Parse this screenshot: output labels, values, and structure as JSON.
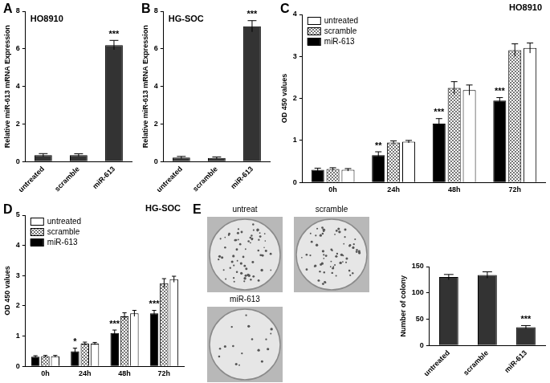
{
  "chart_data": [
    {
      "panel": "A",
      "type": "bar",
      "title": "HO8910",
      "y_label": "Relative miR-613 mRNA Expression",
      "categories": [
        "untreated",
        "scramble",
        "miR-613"
      ],
      "values": [
        0.35,
        0.35,
        6.2
      ],
      "errors": [
        0.08,
        0.07,
        0.25
      ],
      "color": "#333333",
      "ylim": [
        0,
        8
      ],
      "yticks": [
        0,
        2,
        4,
        6,
        8
      ],
      "grid": false,
      "annotations": [
        {
          "category": "miR-613",
          "text": "***"
        }
      ]
    },
    {
      "panel": "B",
      "type": "bar",
      "title": "HG-SOC",
      "y_label": "Relative miR-613 mRNA Expression",
      "categories": [
        "untreated",
        "scramble",
        "miR-613"
      ],
      "values": [
        0.22,
        0.2,
        7.2
      ],
      "errors": [
        0.06,
        0.05,
        0.3
      ],
      "color": "#333333",
      "ylim": [
        0,
        8
      ],
      "yticks": [
        0,
        2,
        4,
        6,
        8
      ],
      "grid": false,
      "annotations": [
        {
          "category": "miR-613",
          "text": "***"
        }
      ]
    },
    {
      "panel": "C",
      "type": "bar",
      "title": "HO8910",
      "y_label": "OD 450 values",
      "categories": [
        "0h",
        "24h",
        "48h",
        "72h"
      ],
      "series": [
        {
          "name": "miR-613",
          "color": "#000000",
          "values": [
            0.3,
            0.65,
            1.4,
            1.95
          ],
          "errors": [
            0.04,
            0.08,
            0.12,
            0.07
          ]
        },
        {
          "name": "scramble",
          "color": "#777777",
          "values": [
            0.32,
            0.95,
            2.25,
            3.15
          ],
          "errors": [
            0.03,
            0.04,
            0.15,
            0.15
          ]
        },
        {
          "name": "untreated",
          "color": "#ffffff",
          "values": [
            0.3,
            0.97,
            2.2,
            3.2
          ],
          "errors": [
            0.03,
            0.03,
            0.12,
            0.12
          ]
        }
      ],
      "ylim": [
        0,
        4
      ],
      "yticks": [
        0,
        1,
        2,
        3,
        4
      ],
      "grid": false,
      "legend": "upper left",
      "annotations": [
        {
          "category": "24h",
          "series": "miR-613",
          "text": "**"
        },
        {
          "category": "48h",
          "series": "miR-613",
          "text": "***"
        },
        {
          "category": "72h",
          "series": "miR-613",
          "text": "***"
        }
      ]
    },
    {
      "panel": "D",
      "type": "bar",
      "title": "HG-SOC",
      "y_label": "OD 450 values",
      "categories": [
        "0h",
        "24h",
        "48h",
        "72h"
      ],
      "series": [
        {
          "name": "miR-613",
          "color": "#000000",
          "values": [
            0.32,
            0.5,
            1.1,
            1.75
          ],
          "errors": [
            0.03,
            0.1,
            0.1,
            0.1
          ]
        },
        {
          "name": "scramble",
          "color": "#777777",
          "values": [
            0.33,
            0.75,
            1.65,
            2.75
          ],
          "errors": [
            0.03,
            0.05,
            0.12,
            0.15
          ]
        },
        {
          "name": "untreated",
          "color": "#ffffff",
          "values": [
            0.33,
            0.75,
            1.75,
            2.88
          ],
          "errors": [
            0.03,
            0.04,
            0.1,
            0.1
          ]
        }
      ],
      "ylim": [
        0,
        5
      ],
      "yticks": [
        0,
        1,
        2,
        3,
        4,
        5
      ],
      "grid": false,
      "legend": "upper left",
      "annotations": [
        {
          "category": "24h",
          "series": "miR-613",
          "text": "*"
        },
        {
          "category": "48h",
          "series": "miR-613",
          "text": "***"
        },
        {
          "category": "72h",
          "series": "miR-613",
          "text": "***"
        }
      ]
    },
    {
      "panel": "E",
      "type": "bar",
      "y_label": "Number of colony",
      "categories": [
        "untreated",
        "scramble",
        "miR-613"
      ],
      "values": [
        130,
        134,
        35
      ],
      "errors": [
        5,
        6,
        3
      ],
      "color": "#333333",
      "ylim": [
        0,
        150
      ],
      "yticks": [
        0,
        50,
        100,
        150
      ],
      "grid": false,
      "annotations": [
        {
          "category": "miR-613",
          "text": "***"
        }
      ]
    }
  ],
  "plates": {
    "labels": [
      "untreat",
      "scramble",
      "miR-613"
    ]
  }
}
